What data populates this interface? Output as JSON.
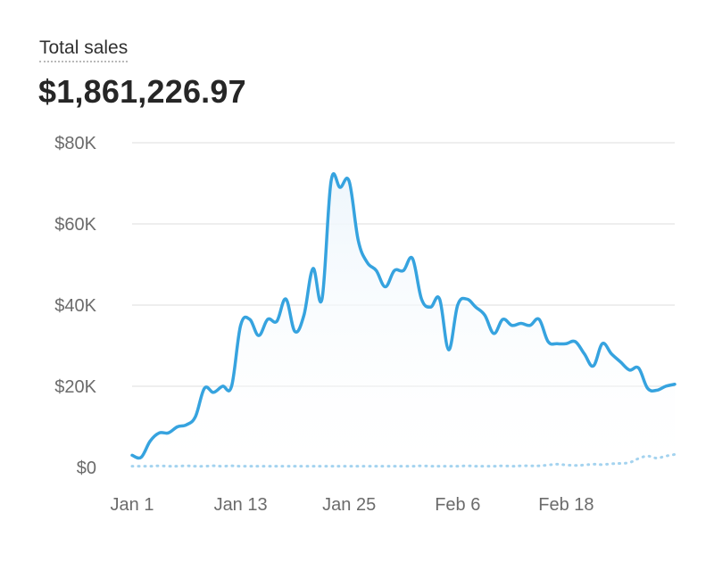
{
  "metric": {
    "label": "Total sales",
    "value": "$1,861,226.97"
  },
  "colors": {
    "primary_line": "#36a3df",
    "comparison_line": "#a4d3ef",
    "area_fill": "#eef6fc",
    "grid": "#e8e8e8",
    "tick_text": "#6b6b6b"
  },
  "chart_data": {
    "type": "line",
    "title": "",
    "xlabel": "",
    "ylabel": "",
    "ylim": [
      0,
      80000
    ],
    "y_ticks": [
      0,
      20000,
      40000,
      60000,
      80000
    ],
    "y_tick_labels": [
      "$0",
      "$20K",
      "$40K",
      "$60K",
      "$80K"
    ],
    "x_tick_labels": [
      "Jan 1",
      "Jan 13",
      "Jan 25",
      "Feb 6",
      "Feb 18"
    ],
    "x_tick_days": [
      0,
      12,
      24,
      36,
      48
    ],
    "days": 61,
    "grid": true,
    "area_under_primary": true,
    "series": [
      {
        "values": [
          3000,
          2500,
          6500,
          8500,
          8500,
          10000,
          10500,
          12500,
          19500,
          18500,
          20000,
          20000,
          35000,
          36500,
          32500,
          36500,
          36000,
          41500,
          33500,
          37500,
          49000,
          41500,
          70500,
          69000,
          70500,
          56000,
          50500,
          48500,
          44500,
          48500,
          48500,
          51500,
          41500,
          39500,
          41500,
          29000,
          40000,
          41500,
          39500,
          37500,
          33000,
          36500,
          35000,
          35500,
          35000,
          36500,
          31000,
          30500,
          30500,
          31000,
          28000,
          25000,
          30500,
          28000,
          26000,
          24000,
          24500,
          19500,
          19000,
          20000,
          20500
        ],
        "style": "solid"
      },
      {
        "values": [
          300,
          300,
          300,
          400,
          300,
          300,
          400,
          300,
          300,
          400,
          300,
          400,
          300,
          300,
          300,
          300,
          300,
          300,
          300,
          300,
          300,
          300,
          300,
          300,
          300,
          300,
          300,
          300,
          300,
          300,
          300,
          300,
          400,
          300,
          300,
          300,
          300,
          400,
          300,
          300,
          300,
          400,
          300,
          400,
          400,
          400,
          600,
          800,
          600,
          500,
          600,
          800,
          700,
          900,
          1000,
          1200,
          2200,
          2800,
          2300,
          2800,
          3200
        ],
        "style": "dotted"
      }
    ]
  }
}
